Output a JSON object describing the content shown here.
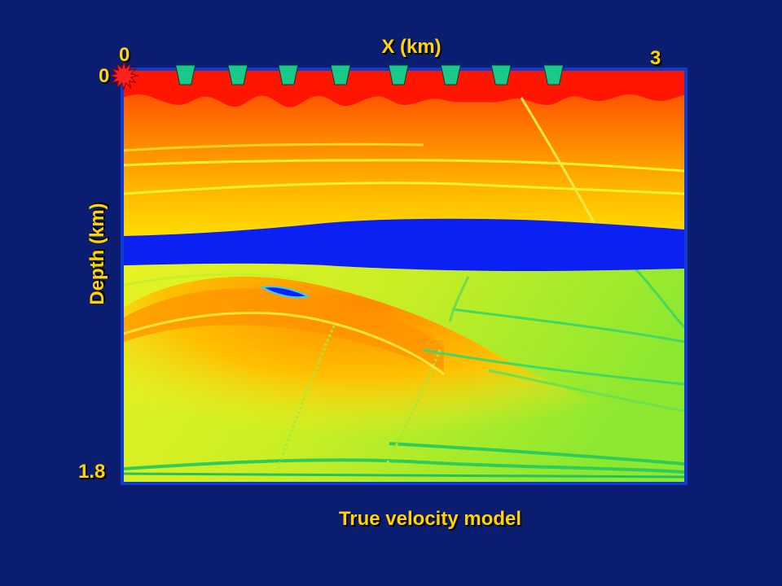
{
  "chart_data": {
    "type": "heatmap",
    "title": "True velocity model",
    "xlabel": "X (km)",
    "ylabel": "Depth (km)",
    "xlim": [
      0,
      3
    ],
    "ylim": [
      0,
      1.8
    ],
    "x_ticks": [
      "0",
      "3"
    ],
    "y_ticks": [
      "0",
      "1.8"
    ],
    "colors": {
      "background": "#0b1d70",
      "label": "#ffd400",
      "shallow_layer": "#ff1500",
      "salt_body": "#0b20f2",
      "deep_background": "#9ceb2a",
      "receiver": "#19c98a",
      "source": "#ff2020",
      "frame": "#0f3ccc"
    },
    "source": {
      "x": 0,
      "depth": 0
    },
    "receivers_x": [
      0.33,
      0.61,
      0.88,
      1.16,
      1.47,
      1.75,
      2.02,
      2.3
    ],
    "salt_layer": {
      "top_depth": 0.73,
      "bottom_depth": 0.9
    }
  }
}
